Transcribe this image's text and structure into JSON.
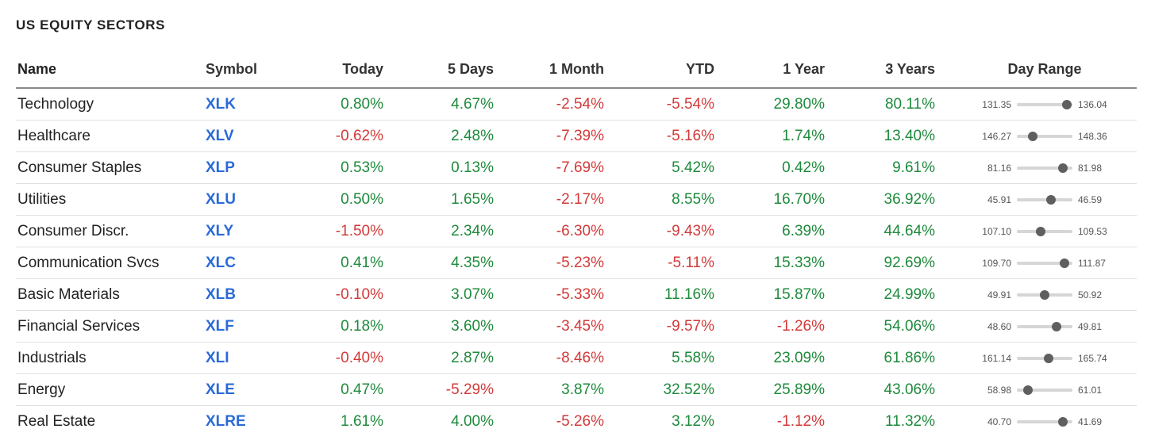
{
  "widget": {
    "title": "US EQUITY SECTORS"
  },
  "colors": {
    "positive": "#1e8a3c",
    "negative": "#d23a3a",
    "symbol": "#2a6ad8"
  },
  "table": {
    "headers": {
      "name": "Name",
      "symbol": "Symbol",
      "today": "Today",
      "five_days": "5 Days",
      "one_month": "1 Month",
      "ytd": "YTD",
      "one_year": "1 Year",
      "three_years": "3 Years",
      "day_range": "Day Range"
    },
    "rows": [
      {
        "name": "Technology",
        "symbol": "XLK",
        "today": "0.80%",
        "five_days": "4.67%",
        "one_month": "-2.54%",
        "ytd": "-5.54%",
        "one_year": "29.80%",
        "three_years": "80.11%",
        "range_low": "131.35",
        "range_high": "136.04",
        "range_position": 0.9
      },
      {
        "name": "Healthcare",
        "symbol": "XLV",
        "today": "-0.62%",
        "five_days": "2.48%",
        "one_month": "-7.39%",
        "ytd": "-5.16%",
        "one_year": "1.74%",
        "three_years": "13.40%",
        "range_low": "146.27",
        "range_high": "148.36",
        "range_position": 0.28
      },
      {
        "name": "Consumer Staples",
        "symbol": "XLP",
        "today": "0.53%",
        "five_days": "0.13%",
        "one_month": "-7.69%",
        "ytd": "5.42%",
        "one_year": "0.42%",
        "three_years": "9.61%",
        "range_low": "81.16",
        "range_high": "81.98",
        "range_position": 0.83
      },
      {
        "name": "Utilities",
        "symbol": "XLU",
        "today": "0.50%",
        "five_days": "1.65%",
        "one_month": "-2.17%",
        "ytd": "8.55%",
        "one_year": "16.70%",
        "three_years": "36.92%",
        "range_low": "45.91",
        "range_high": "46.59",
        "range_position": 0.62
      },
      {
        "name": "Consumer Discr.",
        "symbol": "XLY",
        "today": "-1.50%",
        "five_days": "2.34%",
        "one_month": "-6.30%",
        "ytd": "-9.43%",
        "one_year": "6.39%",
        "three_years": "44.64%",
        "range_low": "107.10",
        "range_high": "109.53",
        "range_position": 0.43
      },
      {
        "name": "Communication Svcs",
        "symbol": "XLC",
        "today": "0.41%",
        "five_days": "4.35%",
        "one_month": "-5.23%",
        "ytd": "-5.11%",
        "one_year": "15.33%",
        "three_years": "92.69%",
        "range_low": "109.70",
        "range_high": "111.87",
        "range_position": 0.85
      },
      {
        "name": "Basic Materials",
        "symbol": "XLB",
        "today": "-0.10%",
        "five_days": "3.07%",
        "one_month": "-5.33%",
        "ytd": "11.16%",
        "one_year": "15.87%",
        "three_years": "24.99%",
        "range_low": "49.91",
        "range_high": "50.92",
        "range_position": 0.5
      },
      {
        "name": "Financial Services",
        "symbol": "XLF",
        "today": "0.18%",
        "five_days": "3.60%",
        "one_month": "-3.45%",
        "ytd": "-9.57%",
        "one_year": "-1.26%",
        "three_years": "54.06%",
        "range_low": "48.60",
        "range_high": "49.81",
        "range_position": 0.72
      },
      {
        "name": "Industrials",
        "symbol": "XLI",
        "today": "-0.40%",
        "five_days": "2.87%",
        "one_month": "-8.46%",
        "ytd": "5.58%",
        "one_year": "23.09%",
        "three_years": "61.86%",
        "range_low": "161.14",
        "range_high": "165.74",
        "range_position": 0.57
      },
      {
        "name": "Energy",
        "symbol": "XLE",
        "today": "0.47%",
        "five_days": "-5.29%",
        "one_month": "3.87%",
        "ytd": "32.52%",
        "one_year": "25.89%",
        "three_years": "43.06%",
        "range_low": "58.98",
        "range_high": "61.01",
        "range_position": 0.2
      },
      {
        "name": "Real Estate",
        "symbol": "XLRE",
        "today": "1.61%",
        "five_days": "4.00%",
        "one_month": "-5.26%",
        "ytd": "3.12%",
        "one_year": "-1.12%",
        "three_years": "11.32%",
        "range_low": "40.70",
        "range_high": "41.69",
        "range_position": 0.83
      }
    ]
  }
}
